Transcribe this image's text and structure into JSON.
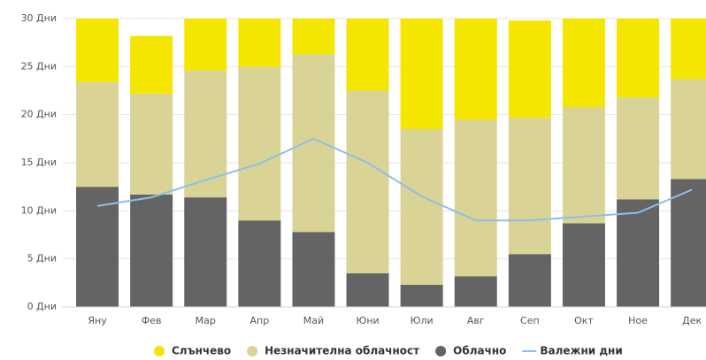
{
  "chart_data": {
    "type": "stacked_bar_line",
    "categories": [
      "Яну",
      "Фев",
      "Мар",
      "Апр",
      "Май",
      "Юни",
      "Юли",
      "Авг",
      "Сеп",
      "Окт",
      "Ное",
      "Дек"
    ],
    "series": [
      {
        "name": "Облачно",
        "color": "#646464",
        "values": [
          12.5,
          11.7,
          11.4,
          9.0,
          7.8,
          3.5,
          2.3,
          3.2,
          5.5,
          8.7,
          11.2,
          13.3
        ]
      },
      {
        "name": "Незначителна облачност",
        "color": "#d9d496",
        "values": [
          10.9,
          10.5,
          13.2,
          16.0,
          18.5,
          19.0,
          16.2,
          16.3,
          14.2,
          12.1,
          10.6,
          10.4
        ]
      },
      {
        "name": "Слънчево",
        "color": "#f5e600",
        "values": [
          7.6,
          6.0,
          6.4,
          5.0,
          4.7,
          7.5,
          12.5,
          11.5,
          10.1,
          10.2,
          8.2,
          7.3
        ]
      },
      {
        "name": "Валежни дни",
        "color": "#90bde9",
        "type": "line",
        "values": [
          10.5,
          11.4,
          13.2,
          14.9,
          17.5,
          15.0,
          11.5,
          9.0,
          9.0,
          9.4,
          9.8,
          12.2
        ]
      }
    ],
    "legend_order": [
      2,
      1,
      0,
      3
    ],
    "ylim": [
      0,
      30
    ],
    "yticks": [
      {
        "value": 0,
        "label": "0 Дни"
      },
      {
        "value": 5,
        "label": "5 Дни"
      },
      {
        "value": 10,
        "label": "10 Дни"
      },
      {
        "value": 15,
        "label": "15 Дни"
      },
      {
        "value": 20,
        "label": "20 Дни"
      },
      {
        "value": 25,
        "label": "25 Дни"
      },
      {
        "value": 30,
        "label": "30 Дни"
      }
    ],
    "grid": true
  }
}
